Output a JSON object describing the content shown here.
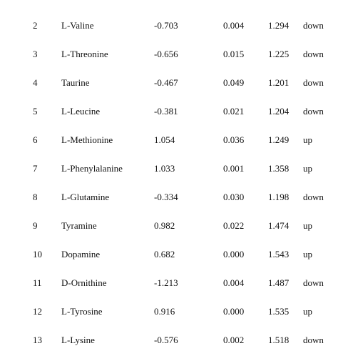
{
  "table": {
    "rows": [
      [
        "2",
        "L-Valine",
        "-0.703",
        "0.004",
        "1.294",
        "down"
      ],
      [
        "3",
        "L-Threonine",
        "-0.656",
        "0.015",
        "1.225",
        "down"
      ],
      [
        "4",
        "Taurine",
        "-0.467",
        "0.049",
        "1.201",
        "down"
      ],
      [
        "5",
        "L-Leucine",
        "-0.381",
        "0.021",
        "1.204",
        "down"
      ],
      [
        "6",
        "L-Methionine",
        "1.054",
        "0.036",
        "1.249",
        "up"
      ],
      [
        "7",
        "L-Phenylalanine",
        "1.033",
        "0.001",
        "1.358",
        "up"
      ],
      [
        "8",
        "L-Glutamine",
        "-0.334",
        "0.030",
        "1.198",
        "down"
      ],
      [
        "9",
        "Tyramine",
        "0.982",
        "0.022",
        "1.474",
        "up"
      ],
      [
        "10",
        "Dopamine",
        "0.682",
        "0.000",
        "1.543",
        "up"
      ],
      [
        "11",
        "D-Ornithine",
        "-1.213",
        "0.004",
        "1.487",
        "down"
      ],
      [
        "12",
        "L-Tyrosine",
        "0.916",
        "0.000",
        "1.535",
        "up"
      ],
      [
        "13",
        "L-Lysine",
        "-0.576",
        "0.002",
        "1.518",
        "down"
      ]
    ]
  }
}
